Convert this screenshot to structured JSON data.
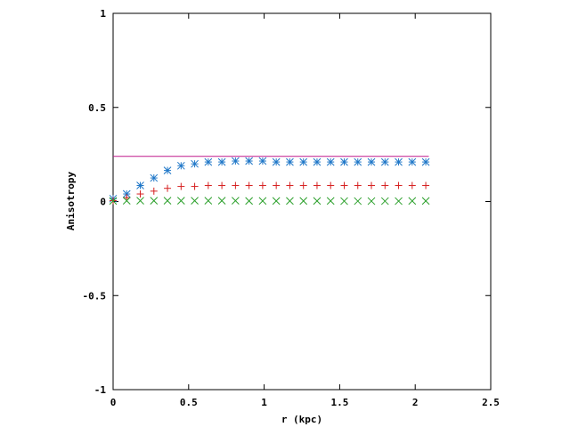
{
  "chart_data": {
    "type": "scatter",
    "title": "",
    "xlabel": "r (kpc)",
    "ylabel": "Anisotropy",
    "xlim": [
      0,
      2.5
    ],
    "ylim": [
      -1,
      1
    ],
    "x_ticks": [
      "0",
      "0.5",
      "1",
      "1.5",
      "2",
      "2.5"
    ],
    "y_ticks": [
      "1",
      "0.5",
      "0",
      "-0.5",
      "-1"
    ],
    "x_tick_values": [
      0,
      0.5,
      1,
      1.5,
      2,
      2.5
    ],
    "y_tick_values": [
      1,
      0.5,
      0,
      -0.5,
      -1
    ],
    "grid": false,
    "legend": "none",
    "series": [
      {
        "marker": "asterisk",
        "color": "#1f77c8",
        "x": [
          0.0,
          0.09,
          0.18,
          0.27,
          0.36,
          0.45,
          0.54,
          0.63,
          0.72,
          0.81,
          0.9,
          0.99,
          1.08,
          1.17,
          1.26,
          1.35,
          1.44,
          1.53,
          1.62,
          1.71,
          1.8,
          1.89,
          1.98,
          2.07
        ],
        "y": [
          0.015,
          0.04,
          0.085,
          0.125,
          0.165,
          0.19,
          0.2,
          0.21,
          0.21,
          0.215,
          0.215,
          0.215,
          0.21,
          0.21,
          0.21,
          0.21,
          0.21,
          0.21,
          0.21,
          0.21,
          0.21,
          0.21,
          0.21,
          0.21
        ]
      },
      {
        "marker": "plus",
        "color": "#d62020",
        "x": [
          0.0,
          0.09,
          0.18,
          0.27,
          0.36,
          0.45,
          0.54,
          0.63,
          0.72,
          0.81,
          0.9,
          0.99,
          1.08,
          1.17,
          1.26,
          1.35,
          1.44,
          1.53,
          1.62,
          1.71,
          1.8,
          1.89,
          1.98,
          2.07
        ],
        "y": [
          0.005,
          0.02,
          0.04,
          0.055,
          0.07,
          0.08,
          0.08,
          0.085,
          0.085,
          0.085,
          0.085,
          0.085,
          0.085,
          0.085,
          0.085,
          0.085,
          0.085,
          0.085,
          0.085,
          0.085,
          0.085,
          0.085,
          0.085,
          0.085
        ]
      },
      {
        "marker": "cross",
        "color": "#2ca02c",
        "x": [
          0.0,
          0.09,
          0.18,
          0.27,
          0.36,
          0.45,
          0.54,
          0.63,
          0.72,
          0.81,
          0.9,
          0.99,
          1.08,
          1.17,
          1.26,
          1.35,
          1.44,
          1.53,
          1.62,
          1.71,
          1.8,
          1.89,
          1.98,
          2.07
        ],
        "y": [
          0.003,
          0.004,
          0.004,
          0.004,
          0.004,
          0.004,
          0.004,
          0.004,
          0.004,
          0.004,
          0.003,
          0.003,
          0.003,
          0.003,
          0.003,
          0.003,
          0.003,
          0.002,
          0.002,
          0.002,
          0.002,
          0.002,
          0.003,
          0.003
        ]
      }
    ],
    "reference_line": {
      "y": 0.24,
      "x_start": 0.0,
      "x_end": 2.09,
      "color": "#c0188c"
    }
  }
}
